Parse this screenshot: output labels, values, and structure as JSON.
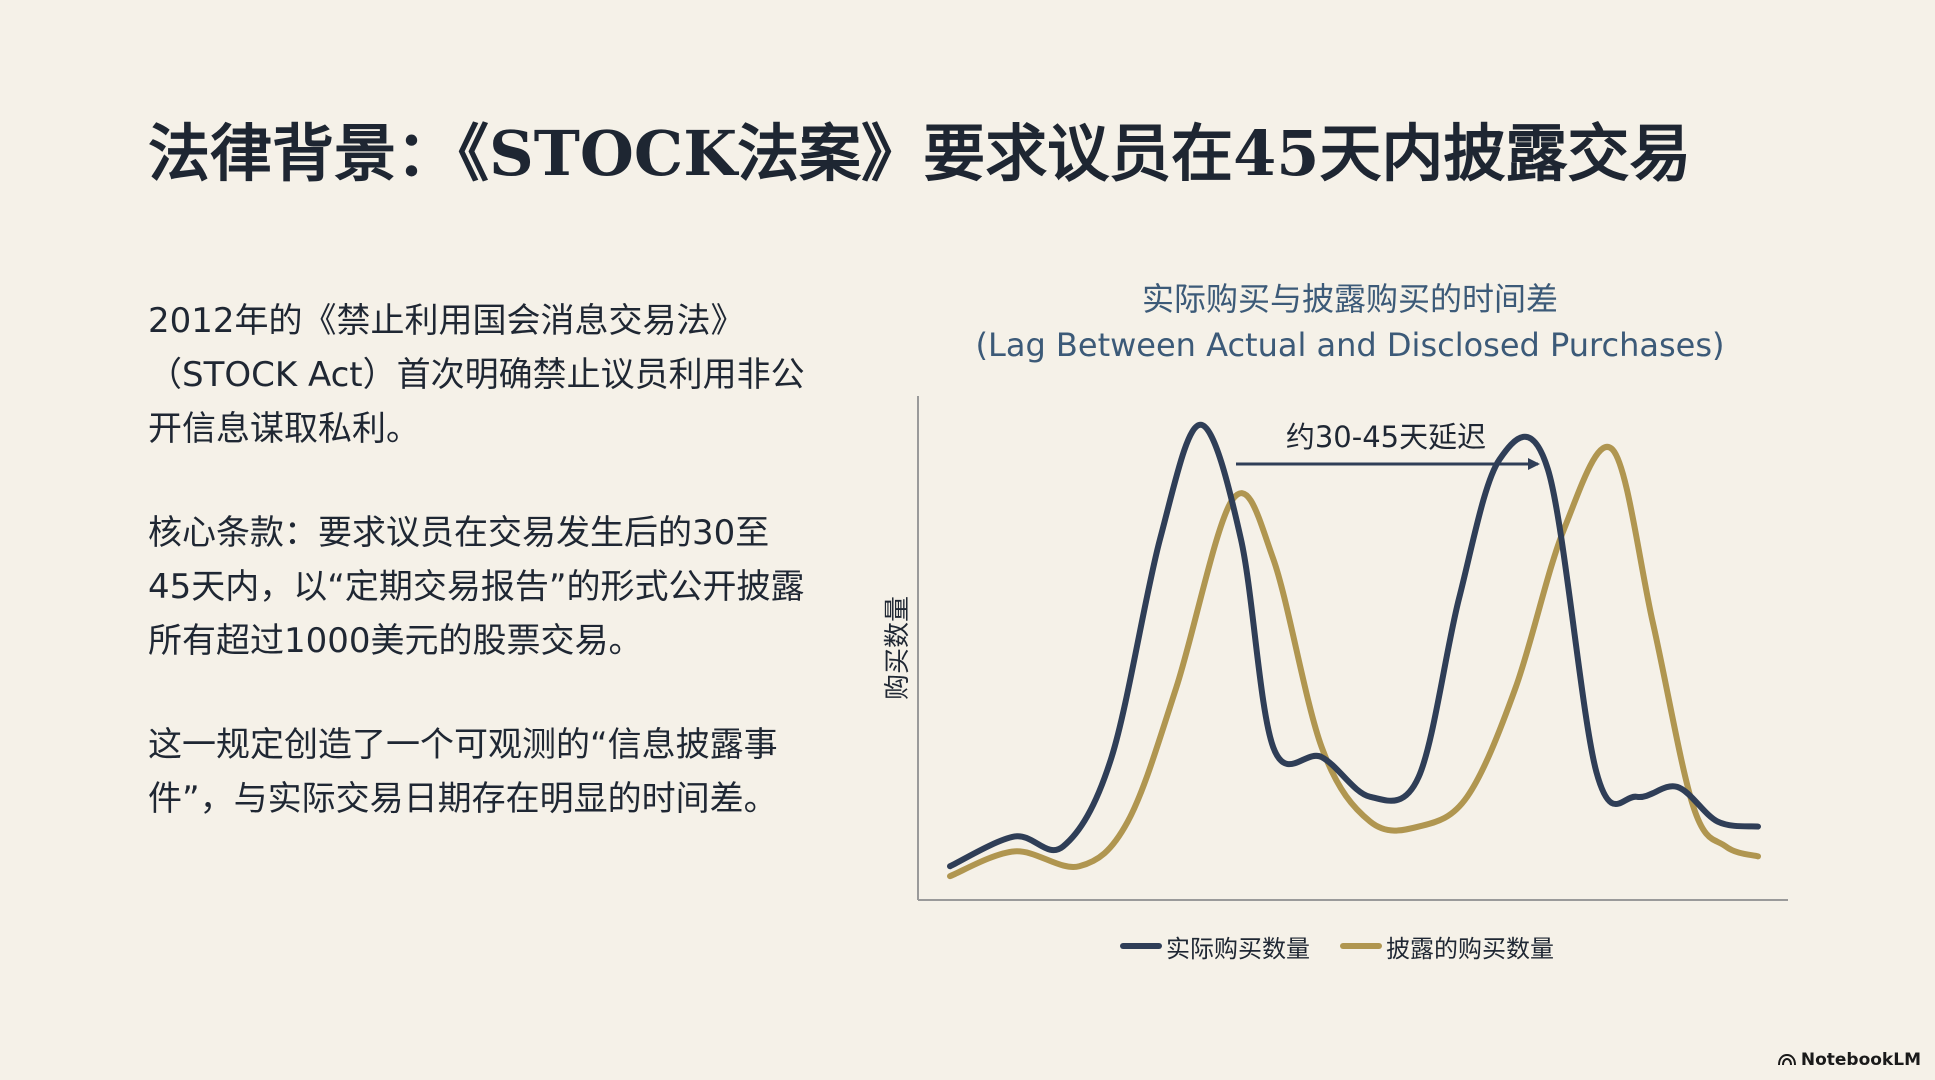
{
  "slide": {
    "title": "法律背景：《STOCK法案》要求议员在45天内披露交易",
    "paragraphs": [
      "2012年的《禁止利用国会消息交易法》（STOCK Act）首次明确禁止议员利用非公开信息谋取私利。",
      "核心条款：要求议员在交易发生后的30至45天内，以“定期交易报告”的形式公开披露所有超过1000美元的股票交易。",
      "这一规定创造了一个可观测的“信息披露事件”，与实际交易日期存在明显的时间差。"
    ],
    "brand": "NotebookLM",
    "brand_icon": "notebooklm-logo-icon"
  },
  "chart_data": {
    "type": "line",
    "title": "实际购买与披露购买的时间差",
    "subtitle": "(Lag Between Actual and Disclosed Purchases)",
    "xlabel": "",
    "ylabel": "购买数量",
    "annotation": "约30-45天延迟",
    "ylim": [
      0,
      100
    ],
    "xlim": [
      0,
      100
    ],
    "grid": false,
    "legend_position": "bottom-center",
    "series": [
      {
        "name": "实际购买数量",
        "color": "#2f3e57",
        "x": [
          0,
          8,
          14,
          20,
          26,
          31,
          36,
          40,
          46,
          52,
          58,
          63,
          68,
          74,
          80,
          85,
          90,
          95,
          100
        ],
        "y": [
          6,
          12,
          10,
          28,
          72,
          95,
          72,
          30,
          28,
          20,
          24,
          60,
          88,
          86,
          25,
          20,
          22,
          15,
          14
        ]
      },
      {
        "name": "披露的购买数量",
        "color": "#b09650",
        "x": [
          0,
          8,
          16,
          22,
          28,
          35,
          40,
          46,
          52,
          58,
          64,
          70,
          76,
          82,
          87,
          92,
          96,
          100
        ],
        "y": [
          4,
          9,
          6,
          15,
          42,
          80,
          68,
          30,
          15,
          14,
          20,
          42,
          74,
          90,
          55,
          18,
          10,
          8
        ]
      }
    ]
  }
}
